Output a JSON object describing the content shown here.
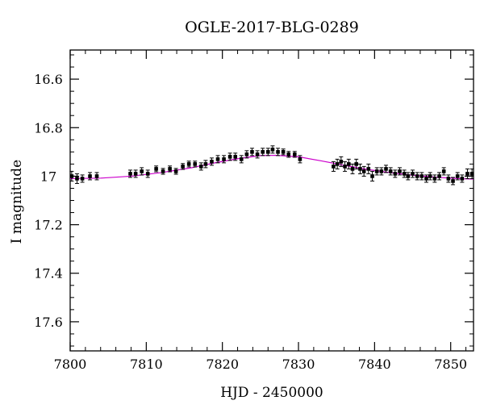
{
  "chart_data": {
    "type": "scatter",
    "title": "OGLE-2017-BLG-0289",
    "xlabel": "HJD - 2450000",
    "ylabel": "I magnitude",
    "xlim": [
      7800,
      7853
    ],
    "ylim": [
      17.72,
      16.48
    ],
    "y_inverted": true,
    "grid": false,
    "x_ticks": [
      7800,
      7810,
      7820,
      7830,
      7840,
      7850
    ],
    "x_tick_labels": [
      "7800",
      "7810",
      "7820",
      "7830",
      "7840",
      "7850"
    ],
    "y_ticks": [
      16.6,
      16.8,
      17.0,
      17.2,
      17.4,
      17.6
    ],
    "y_tick_labels": [
      "16.6",
      "16.8",
      "17",
      "17.2",
      "17.4",
      "17.6"
    ],
    "x_minor_step": 2,
    "y_minor_step": 0.05,
    "series": [
      {
        "kind": "points",
        "color": "#000000",
        "x": [
          7800.2,
          7800.9,
          7801.6,
          7802.6,
          7803.5,
          7807.9,
          7808.6,
          7809.4,
          7810.2,
          7811.3,
          7812.2,
          7813.1,
          7813.9,
          7814.8,
          7815.6,
          7816.4,
          7817.2,
          7817.8,
          7818.6,
          7819.4,
          7820.2,
          7821.0,
          7821.7,
          7822.5,
          7823.2,
          7823.9,
          7824.6,
          7825.3,
          7826.0,
          7826.6,
          7827.3,
          7828.0,
          7828.7,
          7829.5,
          7830.2,
          7834.6,
          7835.1,
          7835.6,
          7836.1,
          7836.6,
          7837.1,
          7837.6,
          7838.1,
          7838.6,
          7839.2,
          7839.7,
          7840.3,
          7840.9,
          7841.5,
          7842.1,
          7842.7,
          7843.3,
          7843.9,
          7844.4,
          7845.0,
          7845.6,
          7846.2,
          7846.8,
          7847.3,
          7847.9,
          7848.5,
          7849.1,
          7849.7,
          7850.3,
          7850.9,
          7851.5,
          7852.2,
          7852.8
        ],
        "y": [
          17.0,
          17.01,
          17.01,
          17.0,
          17.0,
          16.99,
          16.99,
          16.98,
          16.99,
          16.97,
          16.98,
          16.97,
          16.98,
          16.96,
          16.95,
          16.95,
          16.96,
          16.95,
          16.94,
          16.93,
          16.93,
          16.92,
          16.92,
          16.93,
          16.91,
          16.9,
          16.91,
          16.9,
          16.9,
          16.89,
          16.9,
          16.9,
          16.91,
          16.91,
          16.93,
          16.96,
          16.95,
          16.94,
          16.96,
          16.95,
          16.97,
          16.95,
          16.97,
          16.98,
          16.97,
          17.0,
          16.98,
          16.98,
          16.97,
          16.98,
          16.99,
          16.98,
          16.99,
          17.0,
          16.99,
          17.0,
          17.0,
          17.01,
          17.0,
          17.01,
          17.0,
          16.98,
          17.01,
          17.02,
          17.0,
          17.01,
          16.99,
          16.99
        ],
        "err": [
          0.02,
          0.02,
          0.015,
          0.015,
          0.015,
          0.015,
          0.015,
          0.015,
          0.015,
          0.012,
          0.012,
          0.012,
          0.012,
          0.012,
          0.012,
          0.012,
          0.015,
          0.015,
          0.015,
          0.015,
          0.015,
          0.015,
          0.015,
          0.015,
          0.015,
          0.015,
          0.015,
          0.015,
          0.015,
          0.015,
          0.015,
          0.012,
          0.012,
          0.012,
          0.015,
          0.02,
          0.02,
          0.02,
          0.02,
          0.02,
          0.02,
          0.02,
          0.02,
          0.02,
          0.02,
          0.02,
          0.015,
          0.015,
          0.015,
          0.015,
          0.015,
          0.015,
          0.015,
          0.015,
          0.015,
          0.015,
          0.015,
          0.015,
          0.015,
          0.015,
          0.015,
          0.015,
          0.015,
          0.015,
          0.015,
          0.015,
          0.02,
          0.02
        ]
      },
      {
        "kind": "model-curve",
        "color": "#cc00cc",
        "x": [
          7800,
          7804,
          7808,
          7812,
          7816,
          7819,
          7822,
          7825,
          7827,
          7830,
          7833,
          7836,
          7839,
          7842,
          7845,
          7848,
          7851,
          7853
        ],
        "y": [
          17.01,
          17.008,
          17.0,
          16.985,
          16.965,
          16.945,
          16.928,
          16.915,
          16.914,
          16.92,
          16.937,
          16.955,
          16.972,
          16.985,
          16.996,
          17.004,
          17.01,
          17.012
        ]
      }
    ]
  }
}
